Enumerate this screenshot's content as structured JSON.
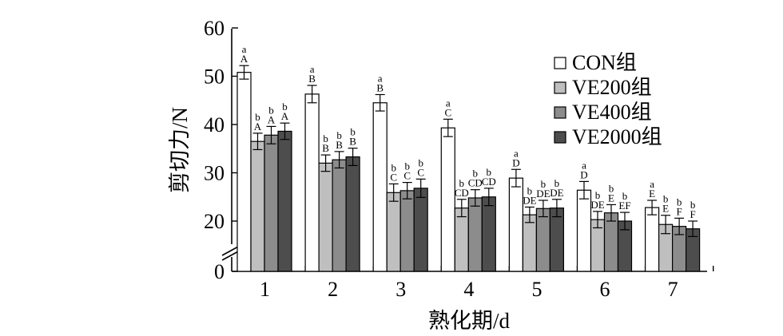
{
  "chart_data": {
    "type": "bar",
    "xlabel": "熟化期/d",
    "ylabel": "剪切力/N",
    "categories": [
      "1",
      "2",
      "3",
      "4",
      "5",
      "6",
      "7"
    ],
    "y_ticks": [
      0,
      20,
      30,
      40,
      50,
      60
    ],
    "ylim": [
      15,
      60
    ],
    "axis_break": true,
    "legend_position": "top-right",
    "series": [
      {
        "name": "CON组",
        "color": "#ffffff",
        "values": [
          50.8,
          46.3,
          44.5,
          39.3,
          28.9,
          26.4,
          22.8
        ],
        "errors": [
          1.4,
          1.8,
          1.7,
          1.8,
          1.8,
          1.8,
          1.5
        ],
        "upper_letters": [
          "a",
          "a",
          "a",
          "a",
          "a",
          "a",
          "a"
        ],
        "lower_letters": [
          "A",
          "B",
          "B",
          "C",
          "D",
          "D",
          "E"
        ]
      },
      {
        "name": "VE200组",
        "color": "#bfbfbf",
        "values": [
          36.5,
          32.0,
          25.9,
          22.7,
          21.3,
          20.3,
          19.3
        ],
        "errors": [
          1.7,
          1.7,
          1.8,
          1.8,
          1.6,
          1.7,
          1.9
        ],
        "upper_letters": [
          "b",
          "b",
          "b",
          "b",
          "b",
          "b",
          "b"
        ],
        "lower_letters": [
          "A",
          "B",
          "C",
          "CD",
          "DE",
          "DE",
          "E"
        ]
      },
      {
        "name": "VE400组",
        "color": "#8c8c8c",
        "values": [
          37.8,
          32.7,
          26.3,
          24.8,
          22.6,
          21.7,
          18.9
        ],
        "errors": [
          1.8,
          1.7,
          1.7,
          1.7,
          1.7,
          1.7,
          1.7
        ],
        "upper_letters": [
          "b",
          "b",
          "b",
          "b",
          "b",
          "b",
          "b"
        ],
        "lower_letters": [
          "A",
          "B",
          "C",
          "CD",
          "DE",
          "E",
          "F"
        ]
      },
      {
        "name": "VE2000组",
        "color": "#4d4d4d",
        "values": [
          38.6,
          33.3,
          26.8,
          25.0,
          22.7,
          20.0,
          18.4
        ],
        "errors": [
          1.7,
          1.8,
          1.9,
          1.8,
          1.8,
          1.8,
          1.6
        ],
        "upper_letters": [
          "b",
          "b",
          "b",
          "b",
          "b",
          "b",
          "b"
        ],
        "lower_letters": [
          "A",
          "B",
          "C",
          "CD",
          "DE",
          "EF",
          "F"
        ]
      }
    ]
  }
}
